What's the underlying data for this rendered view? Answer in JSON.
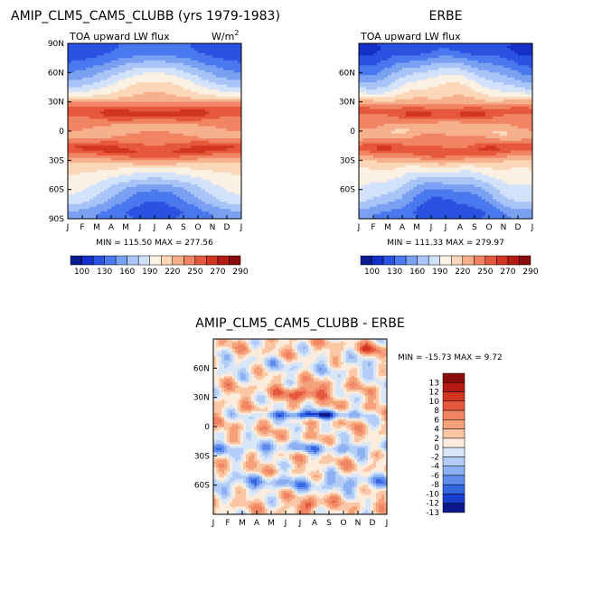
{
  "chart_data": [
    {
      "type": "heatmap",
      "title": "AMIP_CLM5_CAM5_CLUBB (yrs 1979-1983)",
      "subtitle": "TOA upward LW flux",
      "units_label": "W/m",
      "units_exp": "2",
      "x_ticks": [
        "J",
        "F",
        "M",
        "A",
        "M",
        "J",
        "J",
        "A",
        "S",
        "O",
        "N",
        "D",
        "J"
      ],
      "y_ticks": [
        "90N",
        "60N",
        "30N",
        "0",
        "30S",
        "60S",
        "90S"
      ],
      "xlim": [
        0,
        12
      ],
      "ylim": [
        -90,
        90
      ],
      "min_max_text": "MIN = 115.50 MAX = 277.56",
      "levels": [
        100,
        115,
        130,
        145,
        160,
        175,
        190,
        205,
        220,
        235,
        250,
        260,
        270,
        280,
        290
      ]
    },
    {
      "type": "heatmap",
      "title": "ERBE",
      "subtitle": "TOA upward LW flux",
      "x_ticks": [
        "J",
        "F",
        "M",
        "A",
        "M",
        "J",
        "J",
        "A",
        "S",
        "O",
        "N",
        "D",
        "J"
      ],
      "y_ticks": [
        "60N",
        "30N",
        "0",
        "30S",
        "60S"
      ],
      "xlim": [
        0,
        12
      ],
      "ylim": [
        -90,
        90
      ],
      "min_max_text": "MIN = 111.33 MAX = 279.97",
      "levels": [
        100,
        115,
        130,
        145,
        160,
        175,
        190,
        205,
        220,
        235,
        250,
        260,
        270,
        280,
        290
      ]
    },
    {
      "type": "heatmap",
      "title": "AMIP_CLM5_CAM5_CLUBB - ERBE",
      "x_ticks": [
        "J",
        "F",
        "M",
        "A",
        "M",
        "J",
        "J",
        "A",
        "S",
        "O",
        "N",
        "D",
        "J"
      ],
      "y_ticks": [
        "60N",
        "30N",
        "0",
        "30S",
        "60S"
      ],
      "xlim": [
        0,
        12
      ],
      "ylim": [
        -90,
        90
      ],
      "min_max_text": "MIN = -15.73 MAX =   9.72",
      "levels": [
        -13,
        -12,
        -10,
        -8,
        -6,
        -4,
        -2,
        0,
        2,
        4,
        6,
        8,
        10,
        12,
        13
      ]
    }
  ],
  "colorbars": {
    "mean": {
      "labels": [
        "100",
        "130",
        "160",
        "190",
        "220",
        "250",
        "270",
        "290"
      ],
      "colors": [
        "#0a1a8c",
        "#1530c8",
        "#2a52e0",
        "#4a78ef",
        "#7aa0f2",
        "#a9c4f6",
        "#d2e2fa",
        "#fbf1e3",
        "#fbd6b8",
        "#f6b08c",
        "#f08463",
        "#e6583c",
        "#d23520",
        "#b51a12",
        "#8a0c0c"
      ]
    },
    "diff": {
      "labels": [
        "13",
        "12",
        "10",
        "8",
        "6",
        "4",
        "2",
        "0",
        "-2",
        "-4",
        "-6",
        "-8",
        "-10",
        "-12",
        "-13"
      ],
      "colors": [
        "#8a0c0c",
        "#b51a12",
        "#d23520",
        "#e6583c",
        "#f08463",
        "#f6a07a",
        "#fbc6a4",
        "#fdecdc",
        "#d8e6fa",
        "#b4cdf6",
        "#8cb0f2",
        "#5f8cee",
        "#3566e4",
        "#1a3ed0",
        "#0a1a8c"
      ]
    }
  }
}
